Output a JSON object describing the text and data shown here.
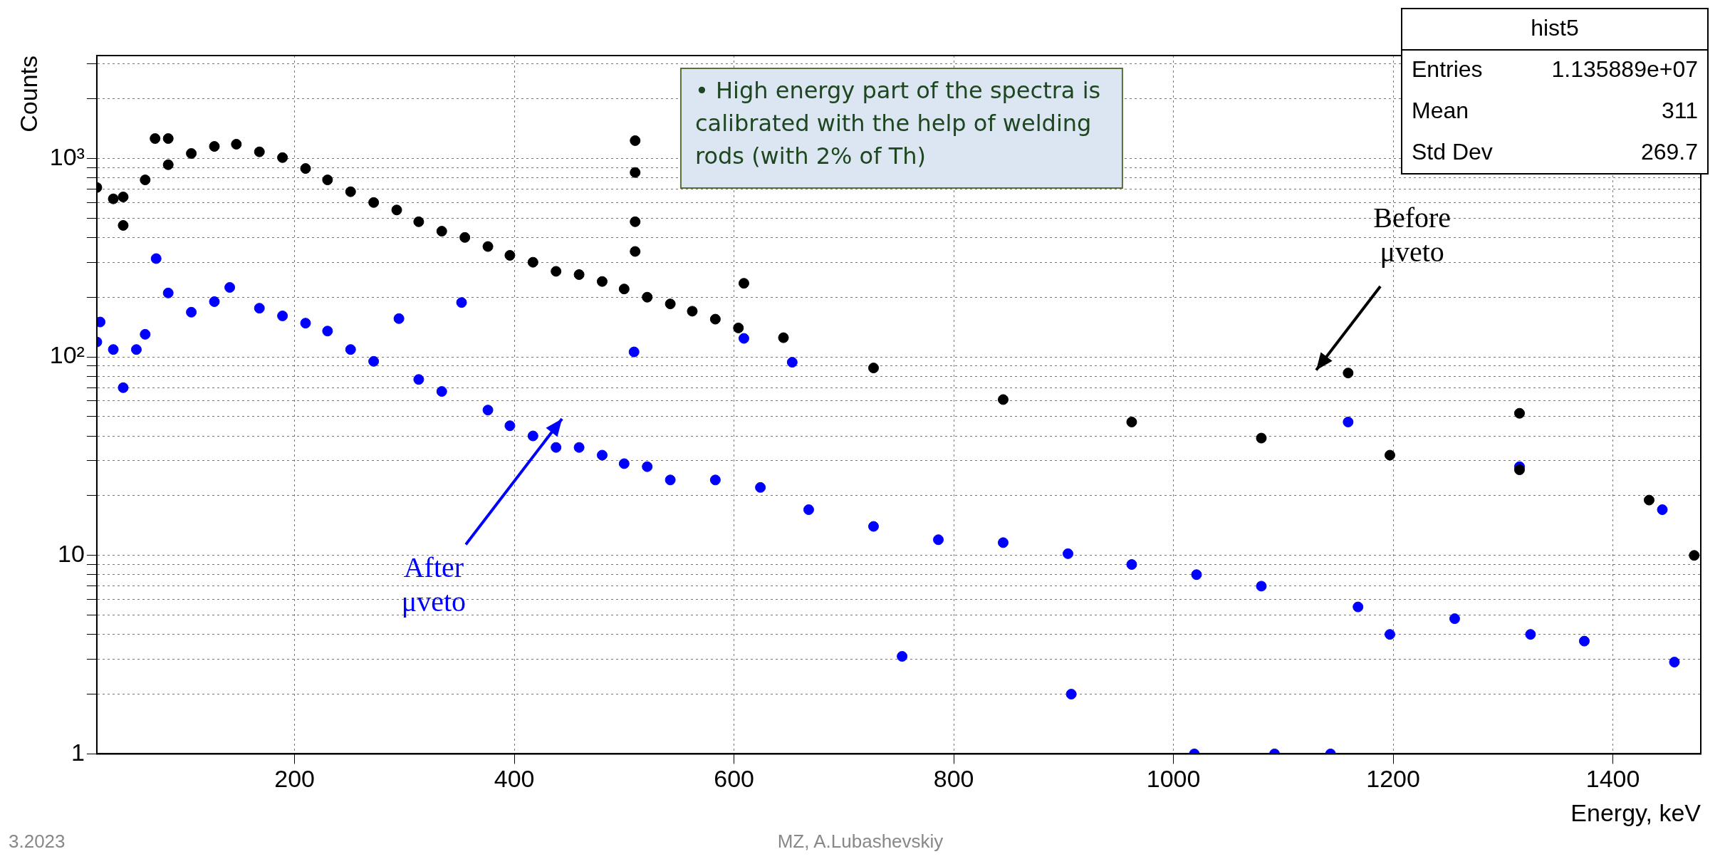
{
  "chart_data": {
    "type": "scatter",
    "xlabel": "Energy, keV",
    "ylabel": "Counts",
    "log": "y",
    "grid": true,
    "legend": false,
    "marker": "circle",
    "xlim": [
      20,
      1480
    ],
    "xticks": [
      200,
      400,
      600,
      800,
      1000,
      1200,
      1400
    ],
    "ylim": [
      1,
      3300
    ],
    "yticks": [
      1,
      {
        "value": 2,
        "label": null
      },
      {
        "value": 3,
        "label": null
      },
      {
        "value": 4,
        "label": null
      },
      {
        "value": 5,
        "label": null
      },
      {
        "value": 6,
        "label": null
      },
      {
        "value": 7,
        "label": null
      },
      {
        "value": 8,
        "label": null
      },
      {
        "value": 9,
        "label": null
      },
      10,
      {
        "value": 20,
        "label": null
      },
      {
        "value": 30,
        "label": null
      },
      {
        "value": 40,
        "label": null
      },
      {
        "value": 50,
        "label": null
      },
      {
        "value": 60,
        "label": null
      },
      {
        "value": 70,
        "label": null
      },
      {
        "value": 80,
        "label": null
      },
      {
        "value": 90,
        "label": null
      },
      {
        "value": 100,
        "label": "10²"
      },
      {
        "value": 200,
        "label": null
      },
      {
        "value": 300,
        "label": null
      },
      {
        "value": 400,
        "label": null
      },
      {
        "value": 500,
        "label": null
      },
      {
        "value": 600,
        "label": null
      },
      {
        "value": 700,
        "label": null
      },
      {
        "value": 800,
        "label": null
      },
      {
        "value": 900,
        "label": null
      },
      {
        "value": 1000,
        "label": "10³"
      },
      {
        "value": 2000,
        "label": null
      },
      {
        "value": 3000,
        "label": null
      }
    ],
    "series": [
      {
        "color": "#000000",
        "x": [
          20,
          35,
          44,
          44,
          64,
          73,
          85,
          85,
          106,
          127,
          147,
          168,
          189,
          210,
          230,
          251,
          272,
          293,
          313,
          334,
          355,
          376,
          396,
          417,
          438,
          459,
          480,
          500,
          510,
          510,
          510,
          510,
          521,
          542,
          562,
          583,
          604,
          609,
          645,
          727,
          845,
          962,
          1080,
          1159,
          1197,
          1315,
          1315,
          1433,
          1474
        ],
        "values": [
          714,
          626,
          640,
          460,
          780,
          1260,
          1260,
          930,
          1060,
          1150,
          1180,
          1080,
          1010,
          890,
          780,
          680,
          600,
          550,
          480,
          430,
          400,
          360,
          325,
          300,
          270,
          260,
          240,
          220,
          1230,
          850,
          480,
          340,
          200,
          185,
          170,
          155,
          140,
          235,
          125,
          88,
          61,
          47,
          39,
          83,
          32,
          52,
          27,
          19,
          10
        ]
      },
      {
        "color": "#0000ff",
        "x": [
          20,
          23,
          35,
          44,
          56,
          64,
          74,
          85,
          106,
          127,
          141,
          168,
          189,
          210,
          230,
          251,
          272,
          295,
          313,
          334,
          352,
          376,
          396,
          417,
          438,
          459,
          480,
          500,
          509,
          521,
          542,
          583,
          609,
          624,
          653,
          668,
          727,
          753,
          786,
          845,
          904,
          907,
          962,
          1019,
          1021,
          1080,
          1092,
          1143,
          1159,
          1168,
          1197,
          1256,
          1315,
          1325,
          1374,
          1445,
          1456
        ],
        "values": [
          119,
          150,
          109,
          70,
          109,
          130,
          313,
          210,
          168,
          190,
          224,
          176,
          161,
          148,
          135,
          109,
          95,
          156,
          77,
          67,
          188,
          54,
          45,
          40,
          35,
          35,
          32,
          29,
          106,
          28,
          24,
          24,
          124,
          22,
          94,
          17,
          14,
          3.1,
          12,
          11.6,
          10.2,
          2,
          9,
          1,
          8,
          7,
          1,
          1,
          47,
          5.5,
          4,
          4.8,
          28,
          4,
          3.7,
          17,
          2.9
        ]
      }
    ],
    "annotations": [
      "• High energy part of the spectra is calibrated with the help of welding rods (with 2% of Th)",
      "hist5",
      "Entries 1.135889e+07",
      "Mean 311",
      "Std Dev 269.7",
      "3.2023",
      "MZ, A.Lubashevskiy",
      "Before μveto",
      "After μveto"
    ]
  }
}
